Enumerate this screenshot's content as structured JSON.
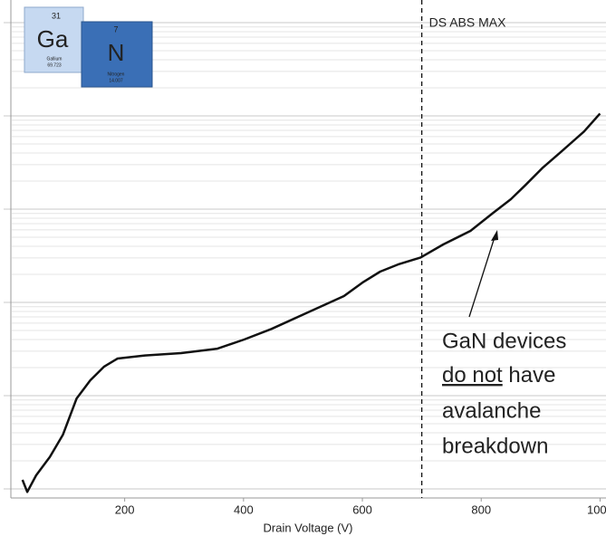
{
  "chart_data": {
    "type": "line",
    "xlabel": "Drain Voltage (V)",
    "x": [
      28,
      36,
      51,
      74,
      96,
      119,
      142,
      165,
      188,
      234,
      295,
      356,
      401,
      447,
      508,
      569,
      600,
      630,
      660,
      698,
      736,
      782,
      820,
      850,
      874,
      904,
      934,
      973,
      1000
    ],
    "series": [
      {
        "name": null,
        "color": "#111111",
        "values": [
          1.25,
          0.93,
          1.4,
          2.2,
          3.8,
          9.3,
          14.6,
          20.4,
          25,
          27,
          28.6,
          31.9,
          40,
          52,
          78,
          117,
          163,
          214,
          255,
          303,
          418,
          585,
          913,
          1280,
          1800,
          2800,
          4100,
          6800,
          10600
        ]
      }
    ],
    "xlim": [
      10,
      1010
    ],
    "xticks": [
      200,
      400,
      600,
      800,
      1000
    ],
    "ylim": [
      0.8,
      100000
    ],
    "yticks": [
      1,
      10,
      100,
      1000,
      10000,
      100000
    ],
    "log_y": true,
    "grid": true,
    "vline": {
      "x": 700,
      "label": "DS ABS MAX"
    },
    "annotation": {
      "lines": [
        "GaN devices",
        "do not",
        " have",
        "avalanche",
        "breakdown"
      ]
    },
    "logo": {
      "ga": {
        "number": "31",
        "symbol": "Ga",
        "name": "Gallium",
        "mass": "69.723"
      },
      "n": {
        "number": "7",
        "symbol": "N",
        "name": "Nitrogen",
        "mass": "14.007"
      }
    }
  }
}
